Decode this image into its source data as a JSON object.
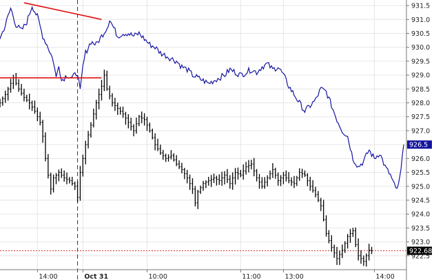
{
  "chart_data": {
    "type": "line",
    "title": "",
    "xlabel": "",
    "ylabel": "",
    "ylim": [
      922.0,
      931.7
    ],
    "y_ticks": [
      922.5,
      923.0,
      923.5,
      924.0,
      924.5,
      925.0,
      925.5,
      926.0,
      926.5,
      927.0,
      927.5,
      928.0,
      928.5,
      929.0,
      929.5,
      930.0,
      930.5,
      931.0,
      931.5
    ],
    "y_tick_labels": [
      "922.5",
      "923.0",
      "923.5",
      "924.0",
      "924.5",
      "925.0",
      "925.5",
      "926.0",
      "926.5",
      "927.0",
      "927.5",
      "928.0",
      "928.5",
      "929.0",
      "929.5",
      "930.0",
      "930.5",
      "931.0",
      "931.5"
    ],
    "x_ticks": [
      {
        "index": 14,
        "label": "14:00",
        "type": "time"
      },
      {
        "index": 31,
        "label": "Oct 31",
        "type": "date"
      },
      {
        "index": 55,
        "label": "10:00",
        "type": "time"
      },
      {
        "index": 90,
        "label": "11:00",
        "type": "time"
      },
      {
        "index": 106,
        "label": "13:00",
        "type": "time"
      },
      {
        "index": 140,
        "label": "14:00",
        "type": "time"
      }
    ],
    "session_break_index": 29,
    "grid": true,
    "series": [
      {
        "role": "index-line",
        "color": "#1414a0",
        "last_value_label": "926.5",
        "last_value_bg": "#1414a0",
        "points": [
          [
            0,
            930.3
          ],
          [
            2,
            930.8
          ],
          [
            4,
            931.4
          ],
          [
            6,
            930.8
          ],
          [
            8,
            930.6
          ],
          [
            10,
            930.9
          ],
          [
            12,
            931.5
          ],
          [
            14,
            931.1
          ],
          [
            16,
            930.4
          ],
          [
            18,
            930.0
          ],
          [
            20,
            929.5
          ],
          [
            21,
            928.9
          ],
          [
            22,
            929.4
          ],
          [
            23,
            928.8
          ],
          [
            25,
            929.0
          ],
          [
            27,
            928.9
          ],
          [
            29,
            929.1
          ],
          [
            30,
            928.4
          ],
          [
            31,
            929.3
          ],
          [
            32,
            929.8
          ],
          [
            34,
            930.2
          ],
          [
            36,
            930.1
          ],
          [
            38,
            930.4
          ],
          [
            40,
            930.7
          ],
          [
            41,
            931.0
          ],
          [
            42,
            930.8
          ],
          [
            44,
            930.4
          ],
          [
            46,
            930.5
          ],
          [
            48,
            930.5
          ],
          [
            50,
            930.4
          ],
          [
            52,
            930.5
          ],
          [
            54,
            930.3
          ],
          [
            56,
            930.1
          ],
          [
            58,
            930.0
          ],
          [
            60,
            929.8
          ],
          [
            62,
            929.7
          ],
          [
            64,
            929.6
          ],
          [
            66,
            929.5
          ],
          [
            68,
            929.3
          ],
          [
            70,
            929.2
          ],
          [
            72,
            929.0
          ],
          [
            74,
            928.9
          ],
          [
            76,
            928.8
          ],
          [
            78,
            928.7
          ],
          [
            80,
            928.8
          ],
          [
            82,
            928.9
          ],
          [
            84,
            929.0
          ],
          [
            86,
            929.2
          ],
          [
            88,
            929.1
          ],
          [
            90,
            929.0
          ],
          [
            92,
            929.1
          ],
          [
            94,
            929.2
          ],
          [
            96,
            929.1
          ],
          [
            98,
            929.3
          ],
          [
            100,
            929.4
          ],
          [
            102,
            929.2
          ],
          [
            104,
            929.3
          ],
          [
            106,
            929.0
          ],
          [
            108,
            928.6
          ],
          [
            110,
            928.3
          ],
          [
            112,
            928.0
          ],
          [
            114,
            927.7
          ],
          [
            116,
            927.9
          ],
          [
            118,
            928.1
          ],
          [
            120,
            928.5
          ],
          [
            122,
            928.4
          ],
          [
            124,
            927.9
          ],
          [
            126,
            927.4
          ],
          [
            128,
            927.0
          ],
          [
            130,
            926.8
          ],
          [
            132,
            926.0
          ],
          [
            134,
            925.7
          ],
          [
            136,
            925.9
          ],
          [
            138,
            926.3
          ],
          [
            140,
            926.0
          ],
          [
            142,
            926.2
          ],
          [
            144,
            925.7
          ],
          [
            146,
            925.4
          ],
          [
            148,
            924.9
          ],
          [
            149,
            925.0
          ],
          [
            150,
            925.6
          ],
          [
            151,
            926.5
          ]
        ]
      },
      {
        "role": "futures-bars",
        "color": "#000000",
        "last_value_label": "922.68",
        "last_value_bg": "#000000",
        "reference_line_value": 922.68,
        "points": [
          [
            0,
            928.0
          ],
          [
            2,
            928.3
          ],
          [
            4,
            928.7
          ],
          [
            5,
            928.9
          ],
          [
            7,
            928.5
          ],
          [
            9,
            928.2
          ],
          [
            11,
            928.0
          ],
          [
            13,
            927.7
          ],
          [
            15,
            927.3
          ],
          [
            16,
            926.8
          ],
          [
            17,
            926.0
          ],
          [
            18,
            925.4
          ],
          [
            19,
            924.9
          ],
          [
            20,
            925.3
          ],
          [
            22,
            925.5
          ],
          [
            24,
            925.3
          ],
          [
            26,
            925.2
          ],
          [
            28,
            925.0
          ],
          [
            29,
            924.6
          ],
          [
            30,
            925.5
          ],
          [
            31,
            926.0
          ],
          [
            32,
            926.5
          ],
          [
            34,
            927.2
          ],
          [
            36,
            928.0
          ],
          [
            38,
            928.6
          ],
          [
            39,
            929.0
          ],
          [
            40,
            928.5
          ],
          [
            42,
            928.0
          ],
          [
            44,
            927.8
          ],
          [
            46,
            927.6
          ],
          [
            48,
            927.3
          ],
          [
            50,
            927.0
          ],
          [
            52,
            927.5
          ],
          [
            54,
            927.4
          ],
          [
            56,
            927.0
          ],
          [
            58,
            926.5
          ],
          [
            60,
            926.2
          ],
          [
            62,
            926.0
          ],
          [
            64,
            926.1
          ],
          [
            66,
            925.8
          ],
          [
            68,
            925.6
          ],
          [
            70,
            925.3
          ],
          [
            72,
            924.9
          ],
          [
            73,
            924.4
          ],
          [
            74,
            924.8
          ],
          [
            76,
            925.1
          ],
          [
            78,
            925.2
          ],
          [
            80,
            925.3
          ],
          [
            82,
            925.2
          ],
          [
            84,
            925.4
          ],
          [
            86,
            925.1
          ],
          [
            88,
            925.5
          ],
          [
            90,
            925.4
          ],
          [
            92,
            925.7
          ],
          [
            94,
            925.8
          ],
          [
            96,
            925.3
          ],
          [
            98,
            925.0
          ],
          [
            100,
            925.3
          ],
          [
            102,
            925.6
          ],
          [
            104,
            925.2
          ],
          [
            106,
            925.4
          ],
          [
            108,
            925.2
          ],
          [
            110,
            925.1
          ],
          [
            112,
            925.5
          ],
          [
            114,
            925.4
          ],
          [
            116,
            925.0
          ],
          [
            118,
            924.7
          ],
          [
            120,
            924.3
          ],
          [
            121,
            923.8
          ],
          [
            122,
            923.3
          ],
          [
            124,
            922.8
          ],
          [
            126,
            922.4
          ],
          [
            128,
            922.7
          ],
          [
            130,
            923.2
          ],
          [
            132,
            923.4
          ],
          [
            133,
            922.9
          ],
          [
            134,
            922.5
          ],
          [
            136,
            922.3
          ],
          [
            138,
            922.7
          ],
          [
            139,
            922.68
          ]
        ]
      }
    ],
    "annotations": [
      {
        "type": "trendline",
        "color": "#e01010",
        "from": [
          9,
          931.6
        ],
        "to": [
          38,
          931.0
        ]
      },
      {
        "type": "trendline",
        "color": "#e01010",
        "from": [
          0,
          928.9
        ],
        "to": [
          38,
          928.9
        ]
      }
    ]
  }
}
